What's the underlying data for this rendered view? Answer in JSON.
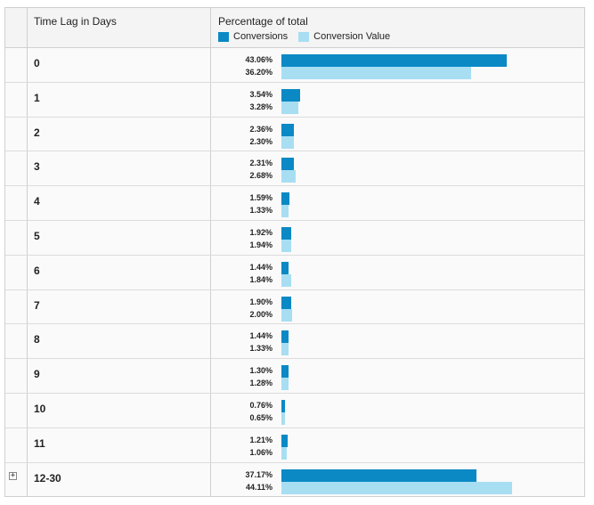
{
  "header": {
    "col_label": "Time Lag in Days",
    "col_chart": "Percentage of total"
  },
  "legend": {
    "conversions": "Conversions",
    "conversion_value": "Conversion Value"
  },
  "colors": {
    "conversions": "#0a89c5",
    "conversion_value": "#a8def2"
  },
  "icons": {
    "expand": "plus-box-icon"
  },
  "chart_data": {
    "type": "bar",
    "orientation": "horizontal",
    "title": "Percentage of total",
    "xlabel": "",
    "ylabel": "Time Lag in Days",
    "categories": [
      "0",
      "1",
      "2",
      "3",
      "4",
      "5",
      "6",
      "7",
      "8",
      "9",
      "10",
      "11",
      "12-30"
    ],
    "xlim": [
      0,
      50
    ],
    "series": [
      {
        "name": "Conversions",
        "values": [
          43.06,
          3.54,
          2.36,
          2.31,
          1.59,
          1.92,
          1.44,
          1.9,
          1.44,
          1.3,
          0.76,
          1.21,
          37.17
        ],
        "labels": [
          "43.06%",
          "3.54%",
          "2.36%",
          "2.31%",
          "1.59%",
          "1.92%",
          "1.44%",
          "1.90%",
          "1.44%",
          "1.30%",
          "0.76%",
          "1.21%",
          "37.17%"
        ]
      },
      {
        "name": "Conversion Value",
        "values": [
          36.2,
          3.28,
          2.3,
          2.68,
          1.33,
          1.94,
          1.84,
          2.0,
          1.33,
          1.28,
          0.65,
          1.06,
          44.11
        ],
        "labels": [
          "36.20%",
          "3.28%",
          "2.30%",
          "2.68%",
          "1.33%",
          "1.94%",
          "1.84%",
          "2.00%",
          "1.33%",
          "1.28%",
          "0.65%",
          "1.06%",
          "44.11%"
        ]
      }
    ],
    "expandable_rows": [
      false,
      false,
      false,
      false,
      false,
      false,
      false,
      false,
      false,
      false,
      false,
      false,
      true
    ]
  }
}
